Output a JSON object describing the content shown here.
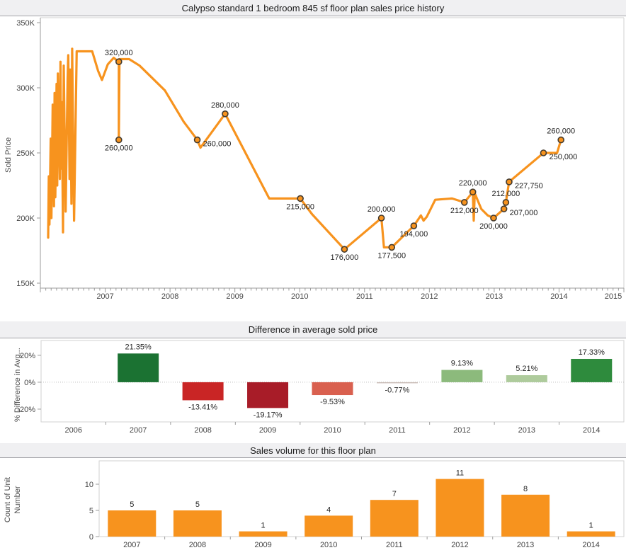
{
  "sections": {
    "price_history": {
      "title": "Calypso standard 1 bedroom 845 sf floor plan sales price history",
      "y_axis_title": "Sold Price"
    },
    "price_diff": {
      "title": "Difference in average sold price",
      "y_axis_title": "% Difference in Avg..."
    },
    "sales_volume": {
      "title": "Sales volume for this floor plan",
      "y_axis_title": "Count of Unit Number"
    }
  },
  "colors": {
    "orange": "#f7931e",
    "marker_ring": "#433a2e",
    "axis": "#9b9b9b",
    "plot_border": "#d2d2d2",
    "zero_line": "#bdbdbd"
  },
  "chart_data": [
    {
      "type": "line",
      "title": "Calypso standard 1 bedroom 845 sf floor plan sales price history",
      "xlabel": "",
      "ylabel": "Sold Price",
      "line_color": "#f7931e",
      "xlim": [
        2006,
        2015
      ],
      "ylim": [
        146200,
        353800
      ],
      "grid": false,
      "y_ticks": [
        {
          "v": 350000,
          "label": "350K"
        },
        {
          "v": 300000,
          "label": "300K"
        },
        {
          "v": 250000,
          "label": "250K"
        },
        {
          "v": 200000,
          "label": "200K"
        },
        {
          "v": 150000,
          "label": "150K"
        }
      ],
      "x_ticks": [
        {
          "v": 2007,
          "label": "2007"
        },
        {
          "v": 2008,
          "label": "2008"
        },
        {
          "v": 2009,
          "label": "2009"
        },
        {
          "v": 2010,
          "label": "2010"
        },
        {
          "v": 2011,
          "label": "2011"
        },
        {
          "v": 2012,
          "label": "2012"
        },
        {
          "v": 2013,
          "label": "2013"
        },
        {
          "v": 2014,
          "label": "2014"
        },
        {
          "v": 2015,
          "label": "2015"
        }
      ],
      "points": [
        [
          2006.12,
          185000
        ],
        [
          2006.13,
          232000
        ],
        [
          2006.14,
          195000
        ],
        [
          2006.16,
          261000
        ],
        [
          2006.17,
          200000
        ],
        [
          2006.19,
          287000
        ],
        [
          2006.21,
          209000
        ],
        [
          2006.22,
          296000
        ],
        [
          2006.23,
          216000
        ],
        [
          2006.25,
          303000
        ],
        [
          2006.26,
          225000
        ],
        [
          2006.27,
          311000
        ],
        [
          2006.3,
          230000
        ],
        [
          2006.31,
          320000
        ],
        [
          2006.32,
          238000
        ],
        [
          2006.33,
          289000
        ],
        [
          2006.35,
          189000
        ],
        [
          2006.36,
          317000
        ],
        [
          2006.38,
          243000
        ],
        [
          2006.39,
          205000
        ],
        [
          2006.42,
          307000
        ],
        [
          2006.43,
          325000
        ],
        [
          2006.45,
          230000
        ],
        [
          2006.46,
          314000
        ],
        [
          2006.48,
          211000
        ],
        [
          2006.49,
          330000
        ],
        [
          2006.51,
          240000
        ],
        [
          2006.52,
          198000
        ],
        [
          2006.55,
          297000
        ],
        [
          2006.56,
          328000
        ],
        [
          2006.8,
          328000
        ],
        [
          2006.89,
          313000
        ],
        [
          2006.95,
          306000
        ],
        [
          2007.04,
          318000
        ],
        [
          2007.13,
          323000
        ],
        [
          2007.21,
          320000
        ],
        [
          2007.21,
          260000
        ],
        [
          2007.22,
          322000
        ],
        [
          2007.37,
          322000
        ],
        [
          2007.53,
          317000
        ],
        [
          2007.92,
          298000
        ],
        [
          2008.21,
          274000
        ],
        [
          2008.42,
          260000
        ],
        [
          2008.47,
          254000
        ],
        [
          2008.85,
          280000
        ],
        [
          2009.53,
          215000
        ],
        [
          2010.01,
          215000
        ],
        [
          2010.19,
          203000
        ],
        [
          2010.69,
          176000
        ],
        [
          2011.26,
          200000
        ],
        [
          2011.3,
          177500
        ],
        [
          2011.42,
          177500
        ],
        [
          2011.76,
          194000
        ],
        [
          2011.87,
          202000
        ],
        [
          2011.91,
          198000
        ],
        [
          2011.96,
          201000
        ],
        [
          2012.09,
          214000
        ],
        [
          2012.35,
          215000
        ],
        [
          2012.54,
          212000
        ],
        [
          2012.67,
          220000
        ],
        [
          2012.685,
          198000
        ],
        [
          2012.7,
          219000
        ],
        [
          2012.8,
          207000
        ],
        [
          2012.9,
          202000
        ],
        [
          2012.99,
          200000
        ],
        [
          2013.15,
          207000
        ],
        [
          2013.18,
          212000
        ],
        [
          2013.23,
          227750
        ],
        [
          2013.76,
          250000
        ],
        [
          2013.97,
          250000
        ],
        [
          2014.03,
          260000
        ]
      ],
      "labeled_points": [
        {
          "x": 2007.21,
          "y": 320000,
          "label": "320,000",
          "anchor": "above"
        },
        {
          "x": 2007.21,
          "y": 260000,
          "label": "260,000",
          "anchor": "below"
        },
        {
          "x": 2008.42,
          "y": 260000,
          "label": "260,000",
          "anchor": "right"
        },
        {
          "x": 2008.85,
          "y": 280000,
          "label": "280,000",
          "anchor": "above"
        },
        {
          "x": 2010.01,
          "y": 215000,
          "label": "215,000",
          "anchor": "below"
        },
        {
          "x": 2010.69,
          "y": 176000,
          "label": "176,000",
          "anchor": "below"
        },
        {
          "x": 2011.26,
          "y": 200000,
          "label": "200,000",
          "anchor": "above"
        },
        {
          "x": 2011.42,
          "y": 177500,
          "label": "177,500",
          "anchor": "below"
        },
        {
          "x": 2011.76,
          "y": 194000,
          "label": "194,000",
          "anchor": "below"
        },
        {
          "x": 2012.54,
          "y": 212000,
          "label": "212,000",
          "anchor": "below"
        },
        {
          "x": 2012.67,
          "y": 220000,
          "label": "220,000",
          "anchor": "above"
        },
        {
          "x": 2012.99,
          "y": 200000,
          "label": "200,000",
          "anchor": "below"
        },
        {
          "x": 2013.15,
          "y": 207000,
          "label": "207,000",
          "anchor": "right"
        },
        {
          "x": 2013.18,
          "y": 212000,
          "label": "212,000",
          "anchor": "above"
        },
        {
          "x": 2013.23,
          "y": 227750,
          "label": "227,750",
          "anchor": "right"
        },
        {
          "x": 2013.76,
          "y": 250000,
          "label": "250,000",
          "anchor": "right"
        },
        {
          "x": 2014.03,
          "y": 260000,
          "label": "260,000",
          "anchor": "above"
        }
      ]
    },
    {
      "type": "bar",
      "title": "Difference in average sold price",
      "xlabel": "",
      "ylabel": "% Difference in Avg...",
      "categories": [
        "2006",
        "2007",
        "2008",
        "2009",
        "2010",
        "2011",
        "2012",
        "2013",
        "2014"
      ],
      "values": [
        null,
        21.35,
        -13.41,
        -19.17,
        -9.53,
        -0.77,
        9.13,
        5.21,
        17.33
      ],
      "labels": [
        null,
        "21.35%",
        "-13.41%",
        "-19.17%",
        "-9.53%",
        "-0.77%",
        "9.13%",
        "5.21%",
        "17.33%"
      ],
      "colors": [
        null,
        "#1b7232",
        "#c92525",
        "#a81c28",
        "#d9604f",
        "#c9bcb6",
        "#8cba7c",
        "#aecb9c",
        "#2e8b3d"
      ],
      "ylim": [
        -29.5,
        31
      ],
      "zero_line": true,
      "y_ticks": [
        {
          "v": 20,
          "label": "20%"
        },
        {
          "v": 0,
          "label": "0%"
        },
        {
          "v": -20,
          "label": "-20%"
        }
      ]
    },
    {
      "type": "bar",
      "title": "Sales volume for this floor plan",
      "xlabel": "",
      "ylabel": "Count of Unit Number",
      "categories": [
        "2007",
        "2008",
        "2009",
        "2010",
        "2011",
        "2012",
        "2013",
        "2014"
      ],
      "values": [
        5,
        5,
        1,
        4,
        7,
        11,
        8,
        1
      ],
      "labels": [
        "5",
        "5",
        "1",
        "4",
        "7",
        "11",
        "8",
        "1"
      ],
      "bar_color": "#f7931e",
      "ylim": [
        0,
        14.46
      ],
      "zero_line": false,
      "y_ticks": [
        {
          "v": 0,
          "label": "0"
        },
        {
          "v": 5,
          "label": "5"
        },
        {
          "v": 10,
          "label": "10"
        }
      ]
    }
  ]
}
